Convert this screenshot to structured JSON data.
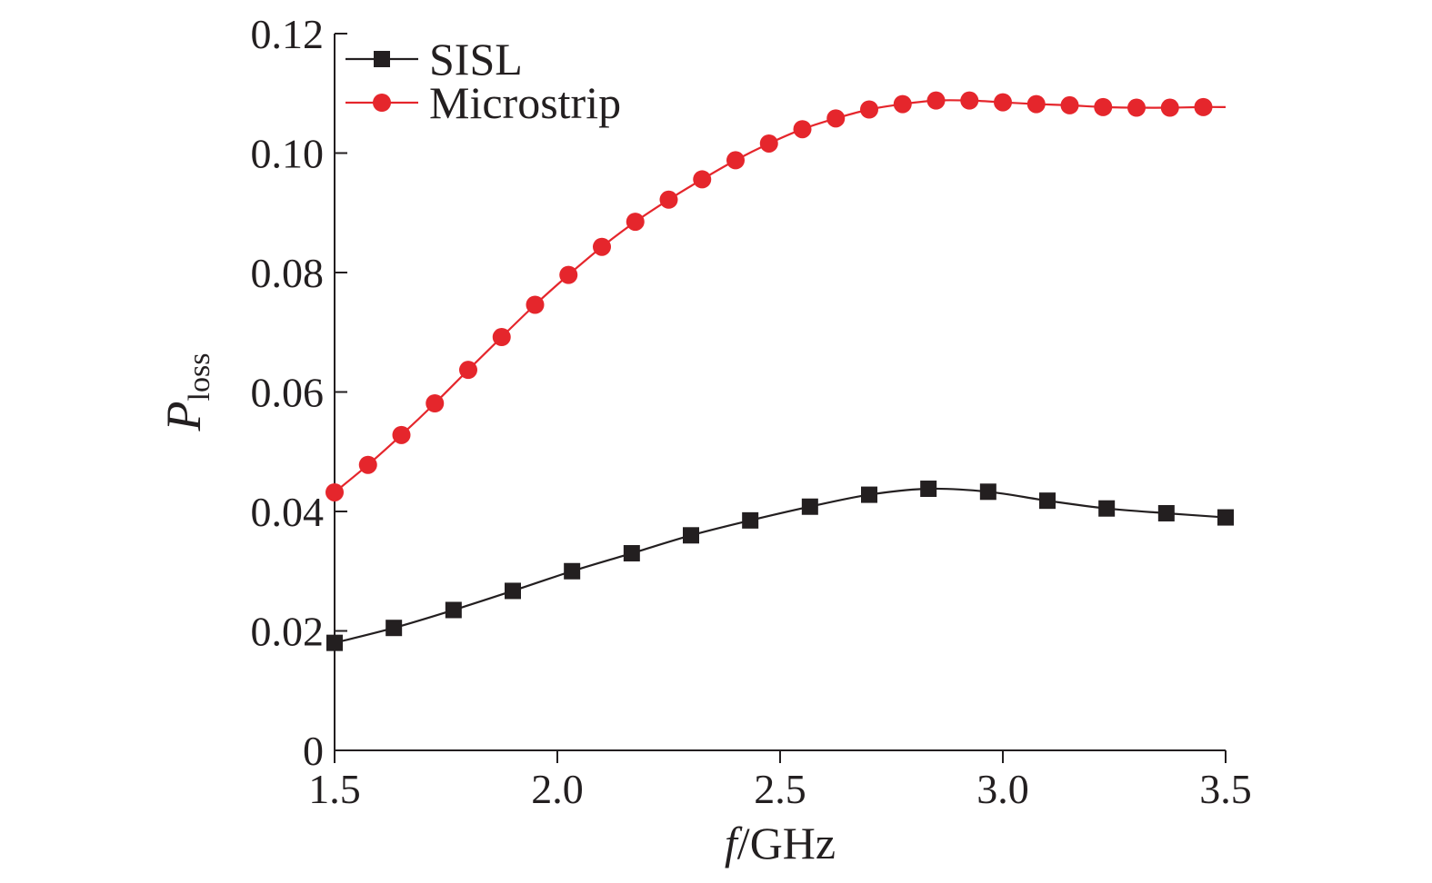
{
  "chart_data": {
    "type": "line",
    "xlabel": {
      "italic": "f",
      "rest": "/GHz"
    },
    "ylabel": {
      "main": "P",
      "sub": "loss"
    },
    "xlim": [
      1.5,
      3.5
    ],
    "ylim": [
      0,
      0.12
    ],
    "xticks": [
      "1.5",
      "2.0",
      "2.5",
      "3.0",
      "3.5"
    ],
    "yticks": [
      "0",
      "0.02",
      "0.04",
      "0.06",
      "0.08",
      "0.10",
      "0.12"
    ],
    "legend_position": "top-left",
    "series": [
      {
        "name": "SISL",
        "color": "#231f20",
        "marker": "square",
        "x": [
          1.5,
          1.633,
          1.767,
          1.9,
          2.033,
          2.167,
          2.3,
          2.433,
          2.567,
          2.7,
          2.833,
          2.967,
          3.1,
          3.233,
          3.367,
          3.5
        ],
        "y": [
          0.018,
          0.0205,
          0.0235,
          0.0267,
          0.03,
          0.033,
          0.036,
          0.0385,
          0.0408,
          0.0428,
          0.0438,
          0.0433,
          0.0418,
          0.0405,
          0.0397,
          0.039
        ]
      },
      {
        "name": "Microstrip",
        "color": "#e5262c",
        "marker": "circle",
        "x": [
          1.5,
          1.575,
          1.65,
          1.725,
          1.8,
          1.875,
          1.95,
          2.025,
          2.1,
          2.175,
          2.25,
          2.325,
          2.4,
          2.475,
          2.55,
          2.625,
          2.7,
          2.775,
          2.85,
          2.925,
          3.0,
          3.075,
          3.15,
          3.225,
          3.3,
          3.375,
          3.45
        ],
        "y": [
          0.0432,
          0.0478,
          0.0528,
          0.0581,
          0.0637,
          0.0692,
          0.0746,
          0.0796,
          0.0843,
          0.0885,
          0.0922,
          0.0956,
          0.0988,
          0.1016,
          0.104,
          0.1058,
          0.1073,
          0.1082,
          0.1088,
          0.1088,
          0.1085,
          0.1082,
          0.108,
          0.1077,
          0.1076,
          0.1076,
          0.1077
        ]
      }
    ]
  }
}
